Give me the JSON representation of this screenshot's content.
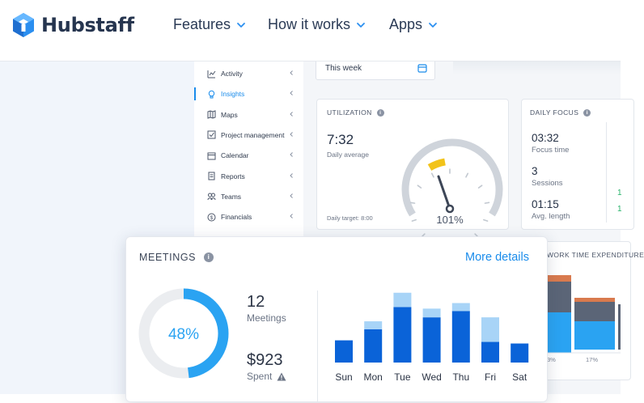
{
  "brand": {
    "name": "Hubstaff",
    "color": "#2b8ff0"
  },
  "nav": [
    {
      "label": "Features",
      "x": 214
    },
    {
      "label": "How it works",
      "x": 331
    },
    {
      "label": "Apps",
      "x": 481
    }
  ],
  "sidebar": {
    "items": [
      {
        "label": "Activity",
        "icon": "activity-chart-icon"
      },
      {
        "label": "Insights",
        "icon": "lightbulb-icon",
        "active": true
      },
      {
        "label": "Maps",
        "icon": "map-icon"
      },
      {
        "label": "Project management",
        "icon": "checkbox-icon"
      },
      {
        "label": "Calendar",
        "icon": "calendar-icon"
      },
      {
        "label": "Reports",
        "icon": "report-icon"
      },
      {
        "label": "Teams",
        "icon": "team-icon"
      },
      {
        "label": "Financials",
        "icon": "dollar-icon"
      }
    ]
  },
  "date_filter": {
    "value": "This week"
  },
  "utilization": {
    "title": "UTILIZATION",
    "value": "7:32",
    "sub": "Daily average",
    "target": "Daily target: 8:00",
    "percent_label": "101%",
    "percent": 101
  },
  "daily_focus": {
    "title": "DAILY FOCUS",
    "items": [
      {
        "value": "03:32",
        "label": "Focus time"
      },
      {
        "value": "3",
        "label": "Sessions"
      },
      {
        "value": "01:15",
        "label": "Avg. length"
      }
    ],
    "marks": [
      "1",
      "1"
    ]
  },
  "work_time": {
    "title": "WORK TIME EXPENDITURE",
    "labels": [
      "3%",
      "17%"
    ]
  },
  "meetings": {
    "title": "MEETINGS",
    "more": "More details",
    "percent_label": "48%",
    "percent": 48,
    "count": "12",
    "count_label": "Meetings",
    "spent": "$923",
    "spent_label": "Spent"
  },
  "colors": {
    "accent": "#1a8ceb",
    "dark_bar": "#0a63d8",
    "light_bar": "#a8d4f7",
    "donut": "#2aa3f2",
    "green": "#27b36a"
  },
  "chart_data": {
    "type": "bar",
    "categories": [
      "Sun",
      "Mon",
      "Tue",
      "Wed",
      "Thu",
      "Fri",
      "Sat"
    ],
    "series": [
      {
        "values": [
          28,
          42,
          70,
          57,
          65,
          26,
          24
        ]
      },
      {
        "values": [
          0,
          10,
          18,
          11,
          10,
          31,
          0
        ]
      }
    ],
    "stacked": true
  }
}
